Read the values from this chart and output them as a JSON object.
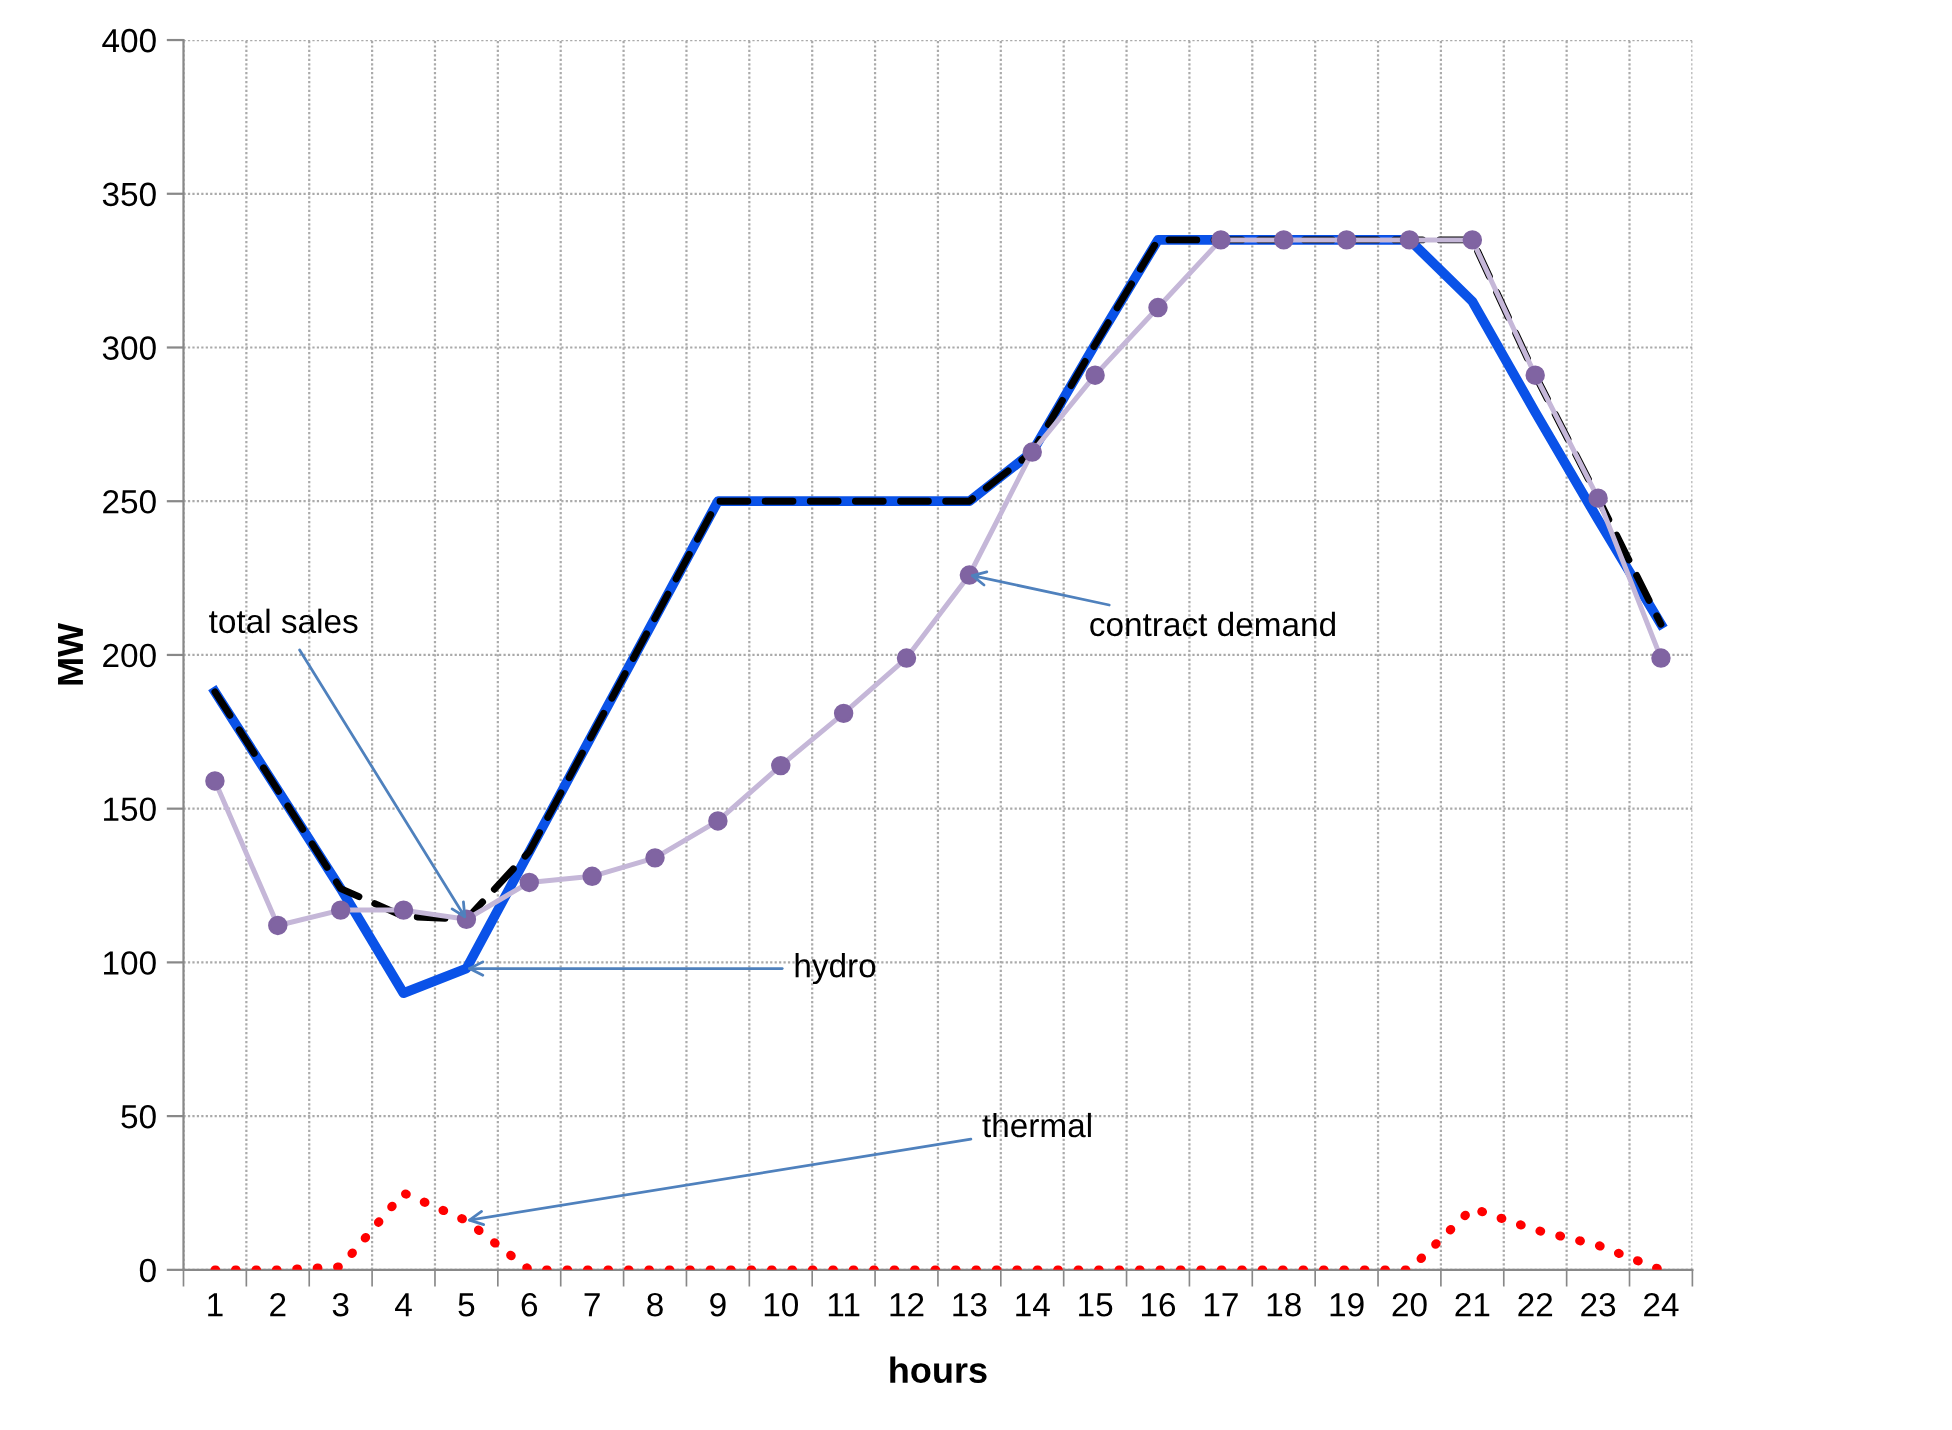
{
  "chart_data": {
    "type": "line",
    "xlabel": "hours",
    "ylabel": "MW",
    "categories": [
      "1",
      "2",
      "3",
      "4",
      "5",
      "6",
      "7",
      "8",
      "9",
      "10",
      "11",
      "12",
      "13",
      "14",
      "15",
      "16",
      "17",
      "18",
      "19",
      "20",
      "21",
      "22",
      "23",
      "24"
    ],
    "series": [
      {
        "color": "#0a52e8",
        "line_style": "solid",
        "marker": "none",
        "values": [
          188,
          156,
          124,
          90,
          98,
          136,
          174,
          212,
          250,
          250,
          250,
          250,
          250,
          266,
          301,
          335,
          335,
          335,
          335,
          335,
          315,
          279,
          244,
          210
        ]
      },
      {
        "color": "#000000",
        "line_style": "dashed",
        "marker": "none",
        "values": [
          188,
          156,
          124,
          115,
          114,
          136,
          174,
          212,
          250,
          250,
          250,
          250,
          250,
          266,
          301,
          335,
          335,
          335,
          335,
          335,
          335,
          291,
          251,
          210
        ]
      },
      {
        "color": "#8064a2",
        "line_style": "solid",
        "marker": "circle",
        "values": [
          159,
          112,
          117,
          117,
          114,
          126,
          128,
          134,
          146,
          164,
          181,
          199,
          226,
          266,
          291,
          313,
          335,
          335,
          335,
          335,
          335,
          291,
          251,
          199
        ]
      },
      {
        "color": "#ff0000",
        "line_style": "dotted",
        "marker": "none",
        "values": [
          0,
          0,
          1,
          25,
          16,
          0,
          0,
          0,
          0,
          0,
          0,
          0,
          0,
          0,
          0,
          0,
          0,
          0,
          0,
          0,
          20,
          13,
          8,
          0
        ]
      }
    ],
    "annotations": [
      {
        "text": "total sales",
        "x": "5",
        "y": 114
      },
      {
        "text": "contract demand",
        "x": "13",
        "y": 226
      },
      {
        "text": "hydro",
        "x": "5",
        "y": 98
      },
      {
        "text": "thermal",
        "x": "5",
        "y": 16
      }
    ],
    "ylim": [
      0,
      400
    ],
    "yticks": [
      0,
      50,
      100,
      150,
      200,
      250,
      300,
      350,
      400
    ],
    "grid": true,
    "legend": false
  }
}
